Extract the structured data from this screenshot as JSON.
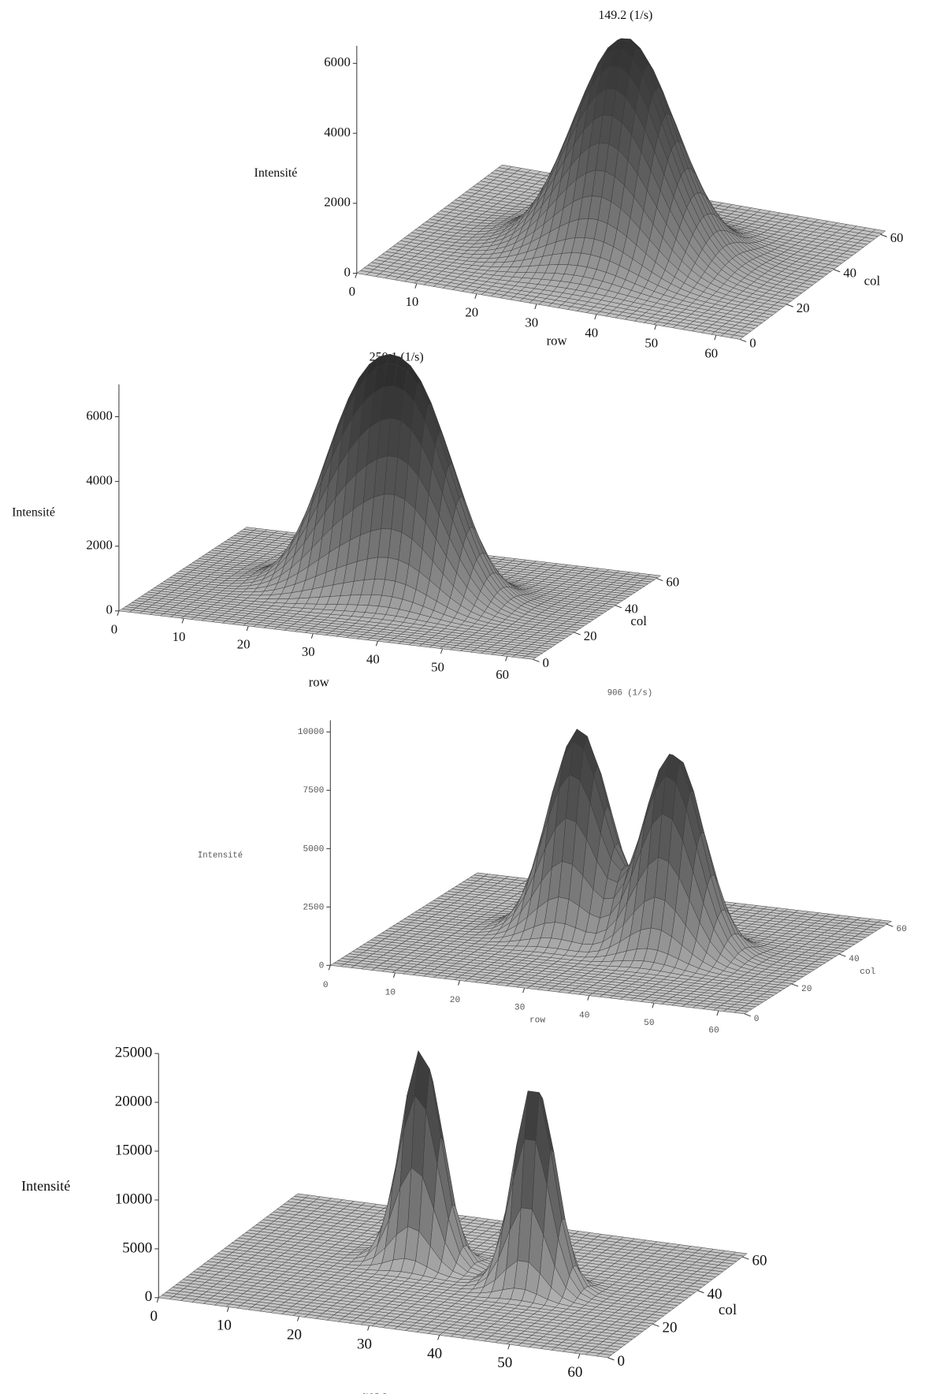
{
  "chart_data": [
    {
      "type": "surface",
      "title": "149.2 (1/s)",
      "zlabel": "Intensité",
      "xlabel": "row",
      "ylabel": "col",
      "xlim": [
        0,
        64
      ],
      "xticks": [
        0,
        10,
        20,
        30,
        40,
        50,
        60
      ],
      "ylim": [
        0,
        62
      ],
      "yticks": [
        0,
        20,
        40,
        60
      ],
      "zlim": [
        0,
        6500
      ],
      "zticks": [
        0,
        2000,
        4000,
        6000
      ],
      "peaks": [
        {
          "row": 33,
          "col": 30,
          "value": 6200,
          "width": 8
        }
      ]
    },
    {
      "type": "surface",
      "title": "250.1 (1/s)",
      "zlabel": "Intensité",
      "xlabel": "row",
      "ylabel": "col",
      "xlim": [
        0,
        64
      ],
      "xticks": [
        0,
        10,
        20,
        30,
        40,
        50,
        60
      ],
      "ylim": [
        0,
        62
      ],
      "yticks": [
        0,
        20,
        40,
        60
      ],
      "zlim": [
        0,
        7000
      ],
      "zticks": [
        0,
        2000,
        4000,
        6000
      ],
      "peaks": [
        {
          "row": 27,
          "col": 32,
          "value": 5200,
          "width": 6
        },
        {
          "row": 37,
          "col": 30,
          "value": 5400,
          "width": 6
        }
      ]
    },
    {
      "type": "surface",
      "title": "906 (1/s)",
      "zlabel": "Intensité",
      "xlabel": "row",
      "ylabel": "col",
      "xlim": [
        0,
        64
      ],
      "xticks": [
        0,
        10,
        20,
        30,
        40,
        50,
        60
      ],
      "ylim": [
        0,
        62
      ],
      "yticks": [
        0,
        20,
        40,
        60
      ],
      "zlim": [
        0,
        10500
      ],
      "zticks": [
        0,
        2500,
        5000,
        7500,
        10000
      ],
      "peaks": [
        {
          "row": 26,
          "col": 34,
          "value": 8800,
          "width": 4.5
        },
        {
          "row": 42,
          "col": 30,
          "value": 8600,
          "width": 4.5
        }
      ]
    },
    {
      "type": "surface",
      "zlabel": "Intensité",
      "xlabel": "row",
      "ylabel": "col",
      "xlim": [
        0,
        64
      ],
      "xticks": [
        0,
        10,
        20,
        30,
        40,
        50,
        60
      ],
      "ylim": [
        0,
        62
      ],
      "yticks": [
        0,
        20,
        40,
        60
      ],
      "zlim": [
        0,
        25000
      ],
      "zticks": [
        0,
        5000,
        10000,
        15000,
        20000,
        25000
      ],
      "peaks": [
        {
          "row": 26,
          "col": 36,
          "value": 22000,
          "width": 2.8
        },
        {
          "row": 44,
          "col": 30,
          "value": 21500,
          "width": 2.8
        }
      ]
    }
  ]
}
